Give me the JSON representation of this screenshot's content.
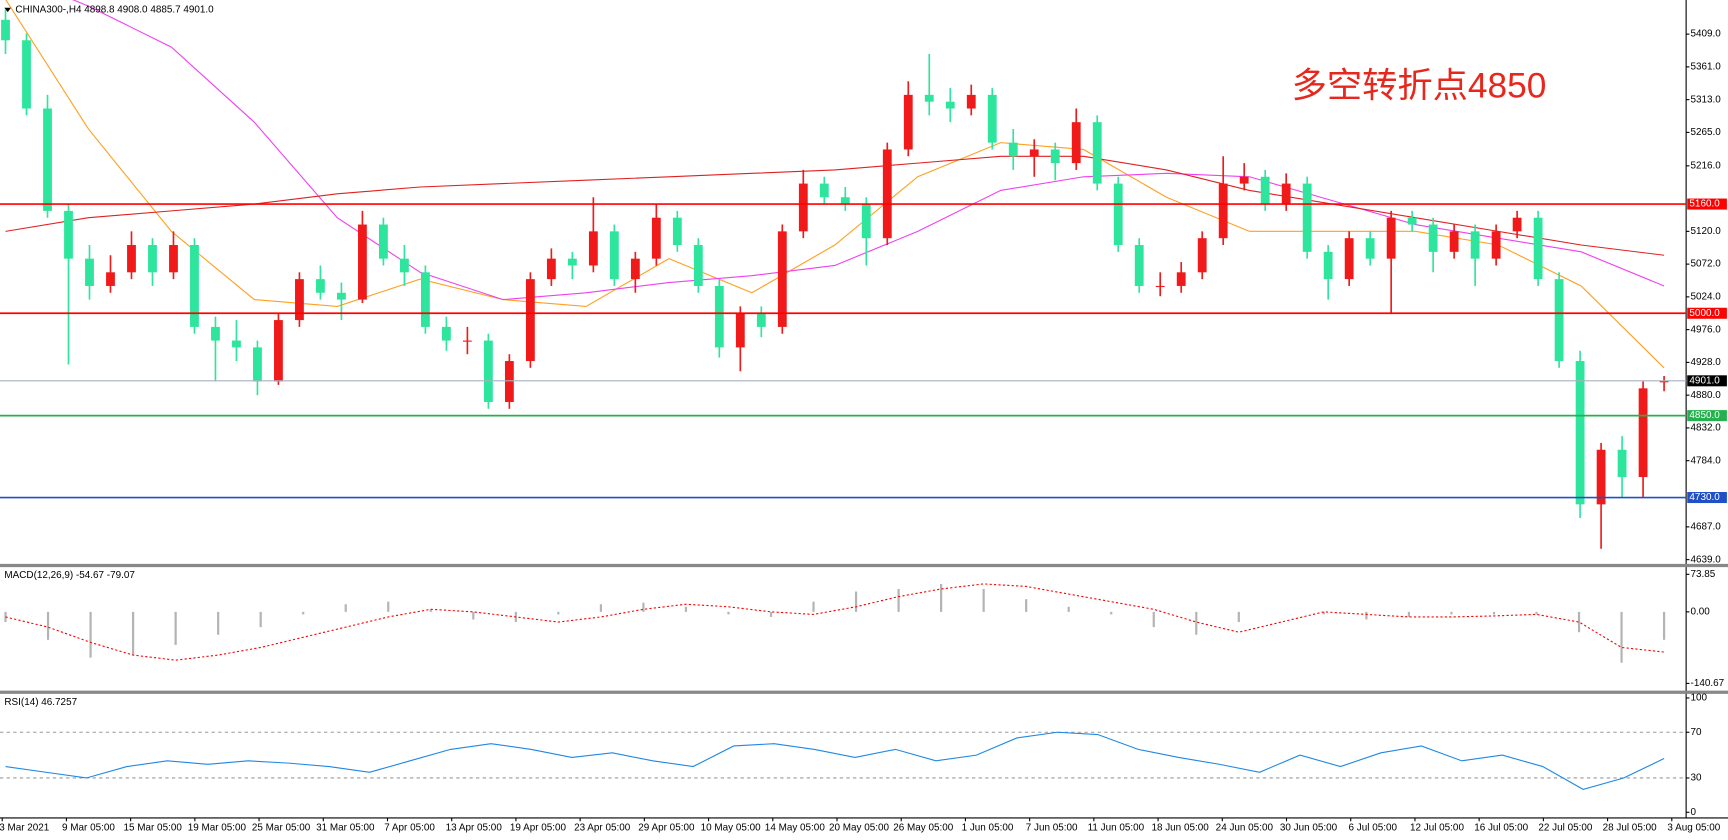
{
  "chart_data": [
    {
      "type": "candlestick",
      "title": "CHINA300-,H4  4898.8 4908.0 4885.7 4901.0",
      "annotation": "多空转折点4850",
      "time_labels": [
        "3 Mar 2021",
        "9 Mar 05:00",
        "15 Mar 05:00",
        "19 Mar 05:00",
        "25 Mar 05:00",
        "31 Mar 05:00",
        "7 Apr 05:00",
        "13 Apr 05:00",
        "19 Apr 05:00",
        "23 Apr 05:00",
        "29 Apr 05:00",
        "10 May 05:00",
        "14 May 05:00",
        "20 May 05:00",
        "26 May 05:00",
        "1 Jun 05:00",
        "7 Jun 05:00",
        "11 Jun 05:00",
        "18 Jun 05:00",
        "24 Jun 05:00",
        "30 Jun 05:00",
        "6 Jul 05:00",
        "12 Jul 05:00",
        "16 Jul 05:00",
        "22 Jul 05:00",
        "28 Jul 05:00",
        "3 Aug 05:00"
      ],
      "up_color": "#f01a1a",
      "down_color": "#2ee59d",
      "ohlc": [
        [
          5430,
          5445,
          5380,
          5400
        ],
        [
          5400,
          5410,
          5290,
          5300
        ],
        [
          5300,
          5320,
          5140,
          5150
        ],
        [
          5150,
          5160,
          4925,
          5080
        ],
        [
          5080,
          5100,
          5020,
          5040
        ],
        [
          5040,
          5085,
          5030,
          5060
        ],
        [
          5060,
          5120,
          5050,
          5100
        ],
        [
          5100,
          5110,
          5040,
          5060
        ],
        [
          5060,
          5120,
          5050,
          5100
        ],
        [
          5100,
          5110,
          4970,
          4980
        ],
        [
          4980,
          4995,
          4900,
          4960
        ],
        [
          4960,
          4990,
          4930,
          4950
        ],
        [
          4950,
          4960,
          4880,
          4900
        ],
        [
          4900,
          5000,
          4895,
          4990
        ],
        [
          4990,
          5060,
          4980,
          5050
        ],
        [
          5050,
          5070,
          5020,
          5030
        ],
        [
          5030,
          5045,
          4990,
          5020
        ],
        [
          5020,
          5150,
          5015,
          5130
        ],
        [
          5130,
          5140,
          5070,
          5080
        ],
        [
          5080,
          5100,
          5040,
          5060
        ],
        [
          5060,
          5070,
          4970,
          4980
        ],
        [
          4980,
          4995,
          4945,
          4960
        ],
        [
          4960,
          4980,
          4940,
          4960
        ],
        [
          4960,
          4970,
          4860,
          4870
        ],
        [
          4870,
          4940,
          4860,
          4930
        ],
        [
          4930,
          5060,
          4920,
          5050
        ],
        [
          5050,
          5095,
          5040,
          5080
        ],
        [
          5080,
          5090,
          5050,
          5070
        ],
        [
          5070,
          5170,
          5060,
          5120
        ],
        [
          5120,
          5130,
          5040,
          5050
        ],
        [
          5050,
          5090,
          5030,
          5080
        ],
        [
          5080,
          5160,
          5070,
          5140
        ],
        [
          5140,
          5150,
          5090,
          5100
        ],
        [
          5100,
          5110,
          5030,
          5040
        ],
        [
          5040,
          5050,
          4935,
          4950
        ],
        [
          4950,
          5010,
          4915,
          5000
        ],
        [
          5000,
          5010,
          4965,
          4980
        ],
        [
          4980,
          5130,
          4970,
          5120
        ],
        [
          5120,
          5210,
          5110,
          5190
        ],
        [
          5190,
          5200,
          5160,
          5170
        ],
        [
          5170,
          5185,
          5150,
          5160
        ],
        [
          5160,
          5170,
          5070,
          5110
        ],
        [
          5110,
          5250,
          5100,
          5240
        ],
        [
          5240,
          5340,
          5230,
          5320
        ],
        [
          5320,
          5380,
          5290,
          5310
        ],
        [
          5310,
          5330,
          5280,
          5300
        ],
        [
          5300,
          5335,
          5290,
          5320
        ],
        [
          5320,
          5330,
          5240,
          5250
        ],
        [
          5250,
          5270,
          5210,
          5230
        ],
        [
          5230,
          5255,
          5200,
          5240
        ],
        [
          5240,
          5250,
          5195,
          5220
        ],
        [
          5220,
          5300,
          5210,
          5280
        ],
        [
          5280,
          5290,
          5180,
          5190
        ],
        [
          5190,
          5200,
          5090,
          5100
        ],
        [
          5100,
          5110,
          5030,
          5040
        ],
        [
          5040,
          5060,
          5025,
          5040
        ],
        [
          5040,
          5075,
          5030,
          5060
        ],
        [
          5060,
          5120,
          5050,
          5110
        ],
        [
          5110,
          5230,
          5100,
          5190
        ],
        [
          5190,
          5220,
          5180,
          5200
        ],
        [
          5200,
          5210,
          5150,
          5160
        ],
        [
          5160,
          5205,
          5150,
          5190
        ],
        [
          5190,
          5200,
          5080,
          5090
        ],
        [
          5090,
          5100,
          5020,
          5050
        ],
        [
          5050,
          5120,
          5040,
          5110
        ],
        [
          5110,
          5120,
          5070,
          5080
        ],
        [
          5080,
          5150,
          5000,
          5140
        ],
        [
          5140,
          5150,
          5120,
          5130
        ],
        [
          5130,
          5140,
          5060,
          5090
        ],
        [
          5090,
          5130,
          5080,
          5120
        ],
        [
          5120,
          5130,
          5040,
          5080
        ],
        [
          5080,
          5130,
          5070,
          5120
        ],
        [
          5120,
          5150,
          5110,
          5140
        ],
        [
          5140,
          5150,
          5040,
          5050
        ],
        [
          5050,
          5060,
          4920,
          4930
        ],
        [
          4930,
          4945,
          4700,
          4720
        ],
        [
          4720,
          4810,
          4655,
          4800
        ],
        [
          4800,
          4820,
          4730,
          4760
        ],
        [
          4760,
          4900,
          4730,
          4890
        ],
        [
          4898.8,
          4908,
          4885.7,
          4901
        ]
      ],
      "moving_averages": [
        {
          "color": "#ffa020",
          "values": [
            5460,
            5270,
            5120,
            5020,
            5010,
            5050,
            5020,
            5010,
            5080,
            5030,
            5100,
            5200,
            5250,
            5240,
            5170,
            5120,
            5120,
            5120,
            5100,
            5040,
            4920
          ]
        },
        {
          "color": "#f040f0",
          "values": [
            5500,
            5450,
            5390,
            5280,
            5140,
            5060,
            5020,
            5030,
            5045,
            5055,
            5070,
            5120,
            5180,
            5200,
            5205,
            5200,
            5165,
            5130,
            5110,
            5090,
            5040
          ]
        },
        {
          "color": "#e02020",
          "values": [
            5120,
            5140,
            5150,
            5160,
            5175,
            5185,
            5190,
            5195,
            5200,
            5205,
            5210,
            5220,
            5230,
            5230,
            5210,
            5180,
            5160,
            5140,
            5120,
            5100,
            5085
          ]
        }
      ],
      "levels": [
        {
          "value": 5160,
          "label": "5160.0",
          "color": "#ff0000"
        },
        {
          "value": 5000,
          "label": "5000.0",
          "color": "#ff0000"
        },
        {
          "value": 4901,
          "label": "4901.0",
          "color": "#000000",
          "line_color": "#a8b0c0"
        },
        {
          "value": 4850,
          "label": "4850.0",
          "color": "#22b14c"
        },
        {
          "value": 4730,
          "label": "4730.0",
          "color": "#2050c8"
        }
      ],
      "ylim": [
        4632,
        5459
      ],
      "yticks": [
        {
          "value": 5409,
          "label": "5409.0"
        },
        {
          "value": 5361,
          "label": "5361.0"
        },
        {
          "value": 5313,
          "label": "5313.0"
        },
        {
          "value": 5265,
          "label": "5265.0"
        },
        {
          "value": 5216,
          "label": "5216.0"
        },
        {
          "value": 5120,
          "label": "5120.0"
        },
        {
          "value": 5072,
          "label": "5072.0"
        },
        {
          "value": 5024,
          "label": "5024.0"
        },
        {
          "value": 4976,
          "label": "4976.0"
        },
        {
          "value": 4928,
          "label": "4928.0"
        },
        {
          "value": 4880,
          "label": "4880.0"
        },
        {
          "value": 4832,
          "label": "4832.0"
        },
        {
          "value": 4784,
          "label": "4784.0"
        },
        {
          "value": 4687,
          "label": "4687.0"
        },
        {
          "value": 4639,
          "label": "4639.0"
        }
      ]
    },
    {
      "type": "macd",
      "title": "MACD(12,26,9) -54.67 -79.07",
      "histogram_color": "#b4b4b4",
      "signal_color": "#ff0000",
      "histogram": [
        -20,
        -55,
        -90,
        -85,
        -65,
        -45,
        -30,
        -5,
        15,
        20,
        5,
        -15,
        -20,
        -5,
        15,
        18,
        10,
        -5,
        -10,
        20,
        40,
        45,
        55,
        45,
        25,
        10,
        -5,
        -30,
        -45,
        -20,
        0,
        -5,
        -15,
        -10,
        -5,
        -5,
        -5,
        -40,
        -100,
        -55
      ],
      "signal": [
        -10,
        -30,
        -60,
        -85,
        -95,
        -85,
        -70,
        -50,
        -30,
        -10,
        5,
        0,
        -10,
        -20,
        -10,
        5,
        15,
        10,
        0,
        -5,
        10,
        30,
        45,
        55,
        50,
        35,
        20,
        5,
        -20,
        -40,
        -20,
        0,
        -5,
        -10,
        -10,
        -8,
        -5,
        -20,
        -70,
        -79
      ],
      "ylim": [
        -156,
        89
      ],
      "yticks": [
        {
          "value": 73.85,
          "label": "73.85"
        },
        {
          "value": 0,
          "label": "0.00"
        },
        {
          "value": -140.67,
          "label": "-140.67"
        }
      ]
    },
    {
      "type": "line",
      "title": "RSI(14) 46.7257",
      "color": "#1e88e5",
      "values": [
        40,
        35,
        30,
        40,
        45,
        42,
        45,
        43,
        40,
        35,
        45,
        55,
        60,
        55,
        48,
        52,
        45,
        40,
        58,
        60,
        55,
        48,
        55,
        45,
        50,
        65,
        70,
        68,
        55,
        48,
        42,
        35,
        50,
        40,
        52,
        58,
        45,
        50,
        40,
        20,
        30,
        47
      ],
      "levels": [
        70,
        30
      ],
      "ylim": [
        -4,
        104
      ],
      "yticks": [
        100,
        70,
        30,
        0
      ]
    }
  ]
}
